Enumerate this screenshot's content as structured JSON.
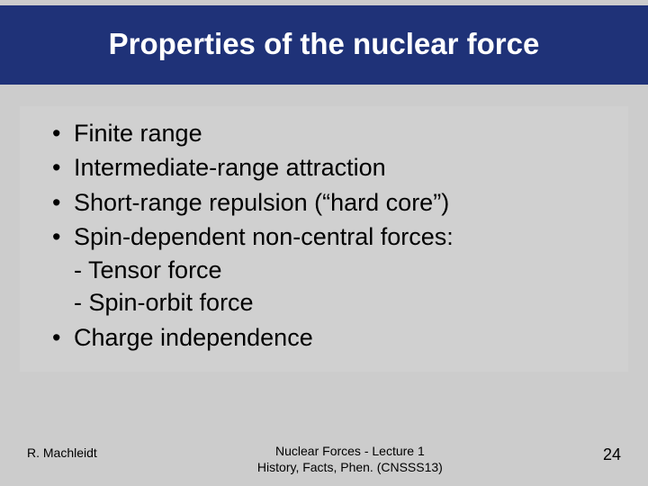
{
  "colors": {
    "page_bg": "#cccccc",
    "title_bg": "#1f3278",
    "title_fg": "#ffffff",
    "content_bg": "#d0d0d0",
    "text": "#000000"
  },
  "typography": {
    "title_fontsize": 33,
    "title_weight": "bold",
    "body_fontsize": 27,
    "footer_fontsize_small": 14,
    "footer_fontsize_pagenum": 18,
    "font_family": "Arial"
  },
  "title": "Properties of the nuclear force",
  "bullets": [
    {
      "text": "Finite range"
    },
    {
      "text": "Intermediate-range attraction"
    },
    {
      "text": "Short-range repulsion (“hard core”)"
    },
    {
      "text": "Spin-dependent non-central forces:",
      "sub": [
        "- Tensor force",
        "- Spin-orbit force"
      ]
    },
    {
      "text": "Charge independence"
    }
  ],
  "footer": {
    "author": "R. Machleidt",
    "center_line1": "Nuclear Forces - Lecture 1",
    "center_line2": "History, Facts, Phen. (CNSSS13)",
    "page_number": "24"
  }
}
